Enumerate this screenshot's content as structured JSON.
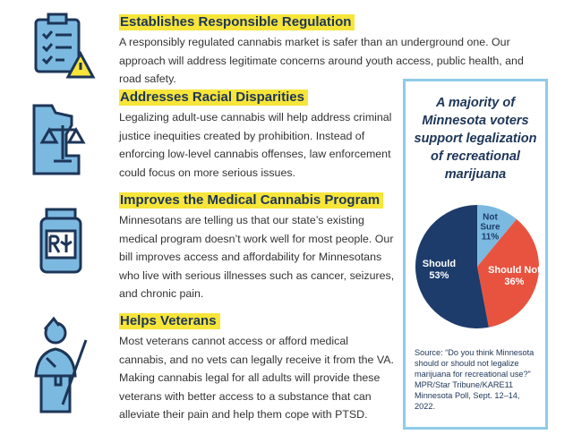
{
  "sections": [
    {
      "heading": "Establishes Responsible Regulation",
      "body": "A responsibly regulated cannabis market is safer than an underground one. Our approach will address legitimate concerns around youth access, public health, and road safety."
    },
    {
      "heading": "Addresses Racial Disparities",
      "body": "Legalizing adult-use cannabis will help address criminal justice inequities created by prohibition. Instead of enforcing low-level cannabis offenses, law enforcement could focus on more serious issues."
    },
    {
      "heading": "Improves the Medical Cannabis Program",
      "body": "Minnesotans are telling us that our state’s existing medical program doesn’t work well for most people. Our bill improves access and affordability for Minnesotans who live with serious illnesses such as cancer, seizures, and chronic pain."
    },
    {
      "heading": "Helps Veterans",
      "body": "Most veterans cannot access or afford medical cannabis, and no vets can legally receive it from the VA. Making cannabis legal for all adults will provide these veterans with better access to a substance that can alleviate their pain and help them cope with PTSD."
    }
  ],
  "chart_data": {
    "type": "pie",
    "title": [
      "A majority of",
      "Minnesota voters",
      "support legalization",
      "of recreational",
      "marijuana"
    ],
    "categories": [
      "Not Sure",
      "Should Not",
      "Should"
    ],
    "values": [
      11,
      36,
      53
    ],
    "value_labels": [
      "11%",
      "36%",
      "53%"
    ],
    "colors": [
      "#7cb9e0",
      "#e8533f",
      "#1d3c6b"
    ],
    "source": "Source: “Do you think Minnesota should or should not legalize marijuana for recreational use?” MPR/Star Tribune/KARE11 Minnesota Poll, Sept. 12–14, 2022."
  }
}
